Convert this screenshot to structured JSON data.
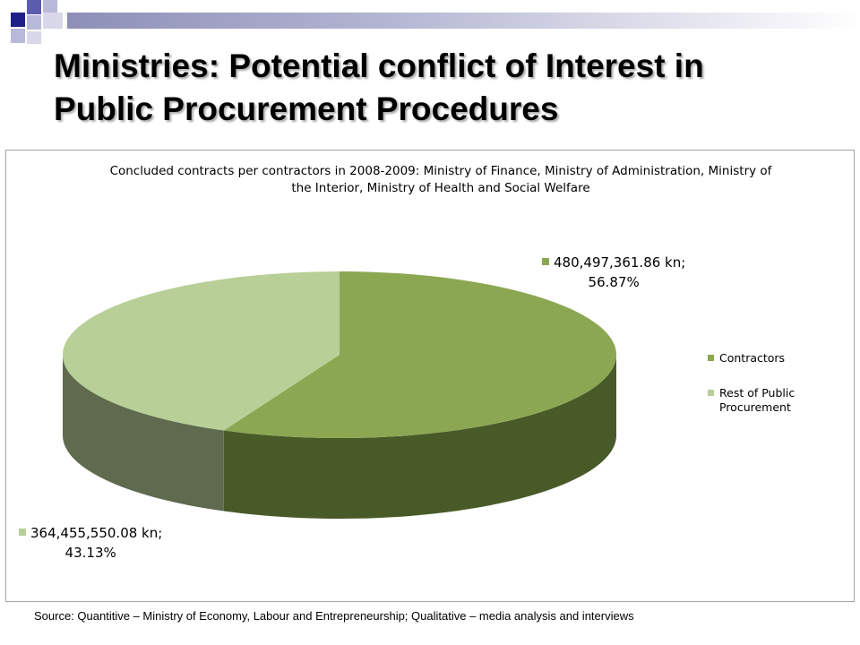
{
  "slide": {
    "title_lines": [
      "Ministries: Potential conflict of Interest in",
      "Public Procurement Procedures"
    ],
    "source": "Source: Quantitive – Ministry of Economy, Labour and Entrepreneurship; Qualitative – media analysis and interviews"
  },
  "theme": {
    "header_bar": "#9c9dc6",
    "deco_navy": "#1f1f8a",
    "deco_blue": "#5b5bb0",
    "deco_light": "#b8b8d8",
    "deco_faint": "#d8d8ea"
  },
  "chart_data": {
    "type": "pie",
    "style": "3d",
    "title_lines": [
      "Concluded contracts per contractors in 2008-2009: Ministry of Finance, Ministry of Administration, Ministry of",
      "the Interior, Ministry of Health and Social Welfare"
    ],
    "series": [
      {
        "name": "Contractors",
        "value": 480497361.86,
        "percent": 56.87,
        "label_lines": [
          "480,497,361.86 kn;",
          "56.87%"
        ],
        "color_top": "#8ba752",
        "color_side": "#485a28"
      },
      {
        "name": "Rest of Public Procurement",
        "value": 364455550.08,
        "percent": 43.13,
        "label_lines": [
          "364,455,550.08 kn;",
          "43.13%"
        ],
        "color_top": "#b8cf97",
        "color_side": "#5f6a4f"
      }
    ],
    "legend": {
      "position": "right",
      "items": [
        {
          "lines": [
            "Contractors"
          ],
          "color": "#8ba752"
        },
        {
          "lines": [
            "Rest of Public",
            "Procurement"
          ],
          "color": "#b8cf97"
        }
      ]
    }
  }
}
